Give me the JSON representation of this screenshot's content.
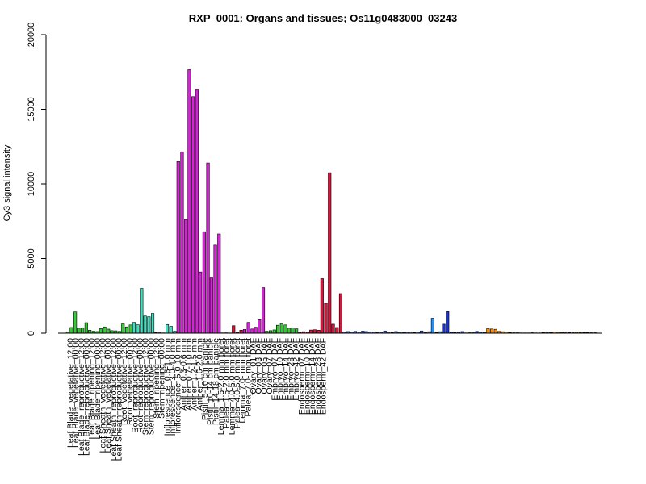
{
  "chart_data": {
    "type": "bar",
    "title": "RXP_0001: Organs and tissues; Os11g0483000_03243",
    "xlabel": "",
    "ylabel": "Cy3 signal intensity",
    "ylim": [
      0,
      20000
    ],
    "yticks": [
      0,
      5000,
      10000,
      15000,
      20000
    ],
    "grid": false,
    "legend": "none",
    "labels": [
      "Leaf Blade_vegetative_12:00",
      "Leaf Blade_vegetative_00:00",
      "Leaf Blade_reproductive_12:00",
      "Leaf Blade_reproductive_00:00",
      "Leaf Blade_ripening_12:00",
      "Leaf Blade_ripening_00:00",
      "Leaf Sheath_vegetative_12:00",
      "Leaf Sheath_vegetative_00:00",
      "Leaf Sheath_reproductive_12:00",
      "Leaf Sheath_reproductive_00:00",
      "Root_vegetative_12:00",
      "Root_vegetative_00:00",
      "Root_reproductive_12:00",
      "Root_reproductive_00:00",
      "Stem_reproductive_12:00",
      "Stem_reproductive_00:00",
      "Stem_ripening_12:00",
      "Stem_ripening_00:00",
      "Inflorescence_0.6-1.0 mm",
      "Inflorescence_3.0-4.0 mm",
      "Inflorescence_5.0-10 mm",
      "Anther_0.3-0.6 mm",
      "Anther_0.7-1.0 mm",
      "Anther_1.2-1.5 mm",
      "Anther_1.6-2.0 mm",
      "Pistil_5-10 cm panicle",
      "Pistil_10-14 cm panicle",
      "Pistil_14-18 cm panicle",
      "Lemma_1.5-2.0 mm floret",
      "Palea_1.5-2.0 mm floret",
      "Lemma_4.0-5.0 mm floret",
      "Palea_4.0-5.0 mm floret",
      "Lemma_7.0- mm floret",
      "Palea_7.0- mm floret",
      "Ovary_01 DAF",
      "Ovary_03 DAF",
      "Ovary_05 DAF",
      "Ovary_07 DAF",
      "Embryo_07 DAF",
      "Embryo_10 DAF",
      "Embryo_14 DAF",
      "Embryo_28 DAF",
      "Embryo_42 DAF",
      "Endosperm_07 DAF",
      "Endosperm_10 DAF",
      "Endosperm_14 DAF",
      "Endosperm_28 DAF",
      "Endosperm_42 DAF"
    ],
    "groups": [
      {
        "color": "#32cd32",
        "values": [
          80,
          380,
          1420
        ]
      },
      {
        "color": "#32cd32",
        "values": [
          330,
          360,
          700
        ]
      },
      {
        "color": "#32cd32",
        "values": [
          200,
          130,
          110
        ]
      },
      {
        "color": "#32cd32",
        "values": [
          300,
          420,
          270
        ]
      },
      {
        "color": "#32cd32",
        "values": [
          170,
          160,
          120
        ]
      },
      {
        "color": "#32cd32",
        "values": [
          620,
          420,
          550
        ]
      },
      {
        "color": "#40e0c0",
        "values": [
          720,
          560,
          3000
        ]
      },
      {
        "color": "#40e0c0",
        "values": [
          1150,
          1100,
          1320
        ]
      },
      {
        "color": "#40e0c0",
        "values": [
          40,
          30,
          20
        ]
      },
      {
        "color": "#40e0c0",
        "values": [
          580,
          460,
          130
        ]
      },
      {
        "color": "#dd1fdd",
        "values": [
          11500,
          12150,
          7600
        ]
      },
      {
        "color": "#dd1fdd",
        "values": [
          17650,
          15850,
          16350
        ]
      },
      {
        "color": "#dd1fdd",
        "values": [
          4100,
          6800,
          11400
        ]
      },
      {
        "color": "#dd1fdd",
        "values": [
          3700,
          5900,
          6650
        ]
      },
      {
        "color": "#dc143c",
        "values": [
          20,
          25,
          15
        ]
      },
      {
        "color": "#dc143c",
        "values": [
          500,
          60,
          200
        ]
      },
      {
        "color": "#dd1fdd",
        "values": [
          250,
          720,
          280
        ]
      },
      {
        "color": "#dd1fdd",
        "values": [
          400,
          900,
          3050
        ]
      },
      {
        "color": "#32cd32",
        "values": [
          130,
          170,
          220
        ]
      },
      {
        "color": "#32cd32",
        "values": [
          530,
          620,
          550
        ]
      },
      {
        "color": "#32cd32",
        "values": [
          330,
          350,
          290
        ]
      },
      {
        "color": "#dc143c",
        "values": [
          60,
          100,
          70
        ]
      },
      {
        "color": "#dc143c",
        "values": [
          210,
          230,
          200
        ]
      },
      {
        "color": "#dc143c",
        "values": [
          3650,
          2000,
          10750
        ]
      },
      {
        "color": "#dc143c",
        "values": [
          600,
          380,
          2650
        ]
      },
      {
        "color": "#4169e1",
        "values": [
          90,
          110,
          80
        ]
      },
      {
        "color": "#4169e1",
        "values": [
          120,
          90,
          140
        ]
      },
      {
        "color": "#4169e1",
        "values": [
          110,
          90,
          80
        ]
      },
      {
        "color": "#4169e1",
        "values": [
          50,
          60,
          150
        ]
      },
      {
        "color": "#4169e1",
        "values": [
          30,
          40,
          110
        ]
      },
      {
        "color": "#4169e1",
        "values": [
          60,
          50,
          80
        ]
      },
      {
        "color": "#4169e1",
        "values": [
          70,
          40,
          80
        ]
      },
      {
        "color": "#4169e1",
        "values": [
          150,
          50,
          100
        ]
      },
      {
        "color": "#1e90ff",
        "values": [
          1000,
          40,
          100
        ]
      },
      {
        "color": "#1732d8",
        "values": [
          600,
          1450,
          90
        ]
      },
      {
        "color": "#1732d8",
        "values": [
          40,
          70,
          110
        ]
      },
      {
        "color": "#1732d8",
        "values": [
          20,
          30,
          30
        ]
      },
      {
        "color": "#1732d8",
        "values": [
          120,
          80,
          60
        ]
      },
      {
        "color": "#ff8c00",
        "values": [
          300,
          280,
          260
        ]
      },
      {
        "color": "#ff8c00",
        "values": [
          120,
          100,
          90
        ]
      },
      {
        "color": "#ff8c00",
        "values": [
          40,
          30,
          30
        ]
      },
      {
        "color": "#ff8c00",
        "values": [
          20,
          20,
          20
        ]
      },
      {
        "color": "#ff8c00",
        "values": [
          30,
          20,
          20
        ]
      },
      {
        "color": "#ff8c00",
        "values": [
          40,
          50,
          40
        ]
      },
      {
        "color": "#ff8c00",
        "values": [
          80,
          60,
          50
        ]
      },
      {
        "color": "#ff8c00",
        "values": [
          30,
          40,
          30
        ]
      },
      {
        "color": "#ff8c00",
        "values": [
          60,
          50,
          40
        ]
      },
      {
        "color": "#ff8c00",
        "values": [
          40,
          30,
          30
        ]
      }
    ]
  }
}
